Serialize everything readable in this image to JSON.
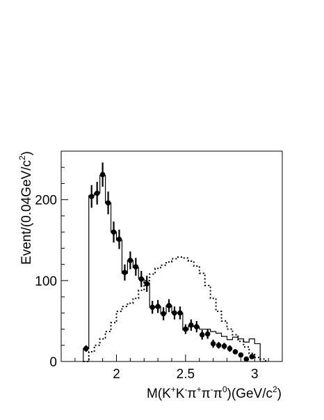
{
  "chart_data": {
    "type": "scatter",
    "title": "",
    "xlabel": {
      "parts": [
        {
          "t": "M(K",
          "s": ""
        },
        {
          "t": "+",
          "s": "sup"
        },
        {
          "t": "K",
          "s": ""
        },
        {
          "t": "-",
          "s": "sup"
        },
        {
          "t": "π",
          "s": ""
        },
        {
          "t": "+",
          "s": "sup"
        },
        {
          "t": "π",
          "s": ""
        },
        {
          "t": "-",
          "s": "sup"
        },
        {
          "t": "π",
          "s": ""
        },
        {
          "t": "0",
          "s": "sup"
        },
        {
          "t": ")(GeV/c",
          "s": ""
        },
        {
          "t": "2",
          "s": "sup"
        },
        {
          "t": ")",
          "s": ""
        }
      ]
    },
    "ylabel": {
      "parts": [
        {
          "t": "Event/(0.04GeV/c",
          "s": ""
        },
        {
          "t": "2",
          "s": "sup"
        },
        {
          "t": ")",
          "s": ""
        }
      ]
    },
    "xlim": [
      1.6,
      3.2
    ],
    "ylim": [
      0,
      260
    ],
    "xticks": [
      {
        "v": 2.0,
        "label": "2"
      },
      {
        "v": 2.5,
        "label": "2.5"
      },
      {
        "v": 3.0,
        "label": "3"
      }
    ],
    "yticks": [
      {
        "v": 0,
        "label": "0"
      },
      {
        "v": 100,
        "label": "100"
      },
      {
        "v": 200,
        "label": "200"
      }
    ],
    "bin_edges": [
      1.76,
      1.8,
      1.84,
      1.88,
      1.92,
      1.96,
      2.0,
      2.04,
      2.08,
      2.12,
      2.16,
      2.2,
      2.24,
      2.28,
      2.32,
      2.36,
      2.4,
      2.44,
      2.48,
      2.52,
      2.56,
      2.6,
      2.64,
      2.68,
      2.72,
      2.76,
      2.8,
      2.84,
      2.88,
      2.92,
      2.96,
      3.0,
      3.04,
      3.08
    ],
    "series": [
      {
        "kind": "points",
        "x": [
          1.78,
          1.82,
          1.86,
          1.9,
          1.94,
          1.98,
          2.02,
          2.06,
          2.1,
          2.14,
          2.18,
          2.22,
          2.26,
          2.3,
          2.34,
          2.38,
          2.42,
          2.46,
          2.5,
          2.54,
          2.58,
          2.62,
          2.66,
          2.7,
          2.74,
          2.78,
          2.82,
          2.86,
          2.9,
          2.94,
          2.98
        ],
        "y": [
          16,
          204,
          208,
          231,
          196,
          160,
          151,
          110,
          125,
          117,
          102,
          96,
          67,
          68,
          59,
          69,
          60,
          60,
          40,
          45,
          43,
          33,
          34,
          22,
          20,
          19,
          16,
          12,
          8,
          3,
          6
        ],
        "yerr": [
          4,
          14,
          14,
          15,
          14,
          13,
          12,
          10,
          11,
          11,
          10,
          10,
          8,
          8,
          8,
          8,
          8,
          8,
          6,
          7,
          7,
          6,
          6,
          5,
          4,
          4,
          4,
          3,
          3,
          2,
          2
        ]
      },
      {
        "kind": "histogram-solid",
        "values": [
          16,
          205,
          208,
          230,
          196,
          160,
          150,
          109,
          125,
          116,
          102,
          97,
          67,
          68,
          59,
          69,
          60,
          60,
          39,
          44,
          43,
          40,
          40,
          37,
          35,
          31,
          27,
          30,
          28,
          24,
          28,
          22,
          0
        ]
      },
      {
        "kind": "histogram-dotted",
        "values": [
          0,
          12,
          20,
          28,
          37,
          48,
          62,
          68,
          72,
          78,
          88,
          100,
          108,
          115,
          119,
          123,
          127,
          129,
          128,
          124,
          118,
          109,
          94,
          78,
          62,
          50,
          40,
          33,
          25,
          18,
          10,
          5,
          3
        ]
      }
    ]
  }
}
